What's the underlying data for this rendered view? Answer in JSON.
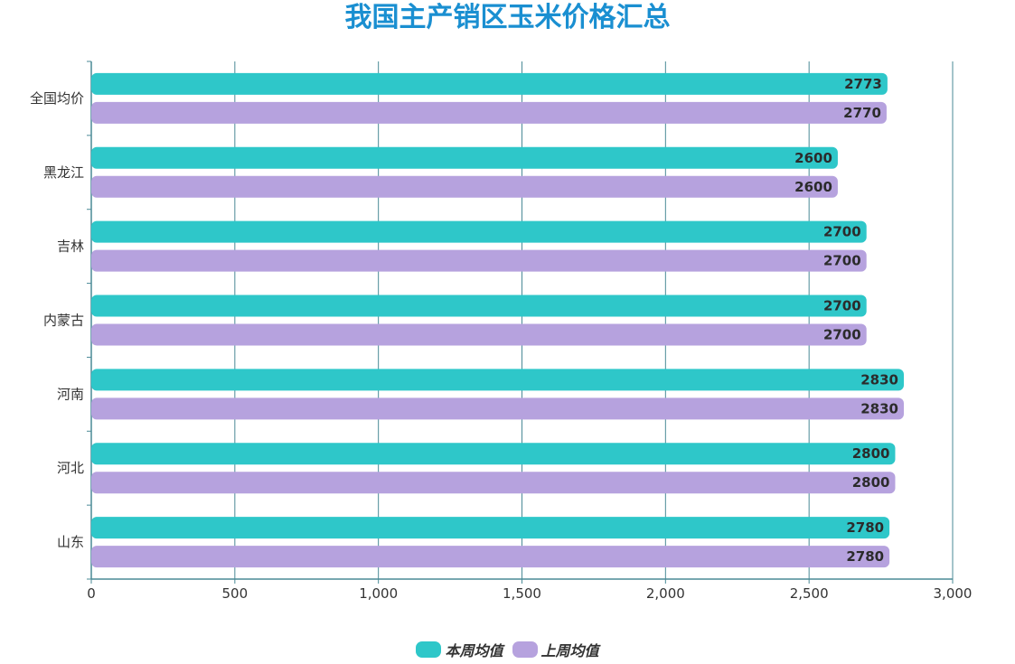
{
  "chart_data": {
    "type": "bar",
    "orientation": "horizontal",
    "title": "我国主产销区玉米价格汇总",
    "categories": [
      "全国均价",
      "黑龙江",
      "吉林",
      "内蒙古",
      "河南",
      "河北",
      "山东"
    ],
    "series": [
      {
        "name": "本周均值",
        "color": "#2ec7c9",
        "values": [
          2773,
          2600,
          2700,
          2700,
          2830,
          2800,
          2780
        ]
      },
      {
        "name": "上周均值",
        "color": "#b6a2de",
        "values": [
          2770,
          2600,
          2700,
          2700,
          2830,
          2800,
          2780
        ]
      }
    ],
    "xlim": [
      0,
      3000
    ],
    "xticks": [
      0,
      500,
      1000,
      1500,
      2000,
      2500,
      3000
    ],
    "xtick_labels": [
      "0",
      "500",
      "1,000",
      "1,500",
      "2,000",
      "2,500",
      "3,000"
    ],
    "grid": true,
    "legend_position": "bottom"
  },
  "colors": {
    "title": "#1a8fd1",
    "axis": "#4a8a96",
    "grid": "#4a8a96"
  }
}
